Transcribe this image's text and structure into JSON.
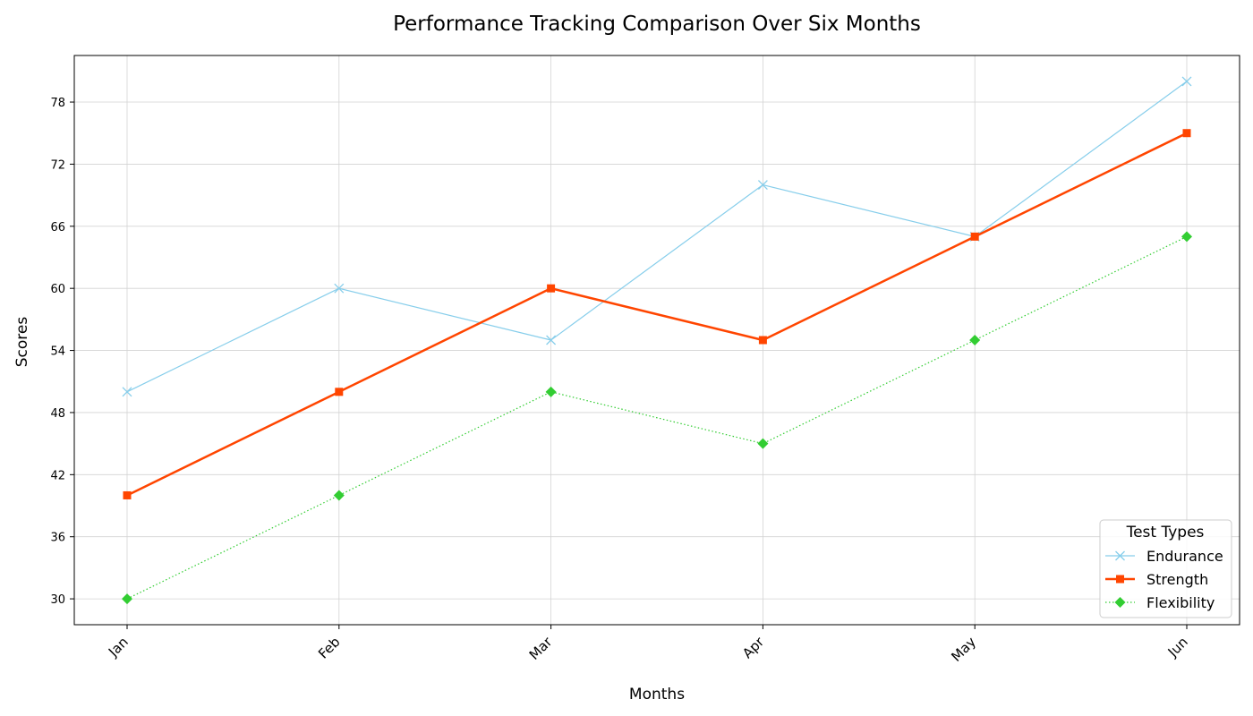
{
  "chart_data": {
    "type": "line",
    "title": "Performance Tracking Comparison Over Six Months",
    "xlabel": "Months",
    "ylabel": "Scores",
    "categories": [
      "Jan",
      "Feb",
      "Mar",
      "Apr",
      "May",
      "Jun"
    ],
    "ylim": [
      27.5,
      82.5
    ],
    "yticks": [
      30,
      36,
      42,
      48,
      54,
      60,
      66,
      72,
      78
    ],
    "grid": true,
    "legend": {
      "title": "Test Types",
      "placement": "lower-right"
    },
    "series": [
      {
        "name": "Endurance",
        "values": [
          50,
          60,
          55,
          70,
          65,
          80
        ],
        "color": "#87ceeb",
        "marker": "x",
        "line": "solid"
      },
      {
        "name": "Strength",
        "values": [
          40,
          50,
          60,
          55,
          65,
          75
        ],
        "color": "#ff4500",
        "marker": "square",
        "line": "solid-thick"
      },
      {
        "name": "Flexibility",
        "values": [
          30,
          40,
          50,
          45,
          55,
          65
        ],
        "color": "#32cd32",
        "marker": "diamond",
        "line": "dotted"
      }
    ]
  }
}
